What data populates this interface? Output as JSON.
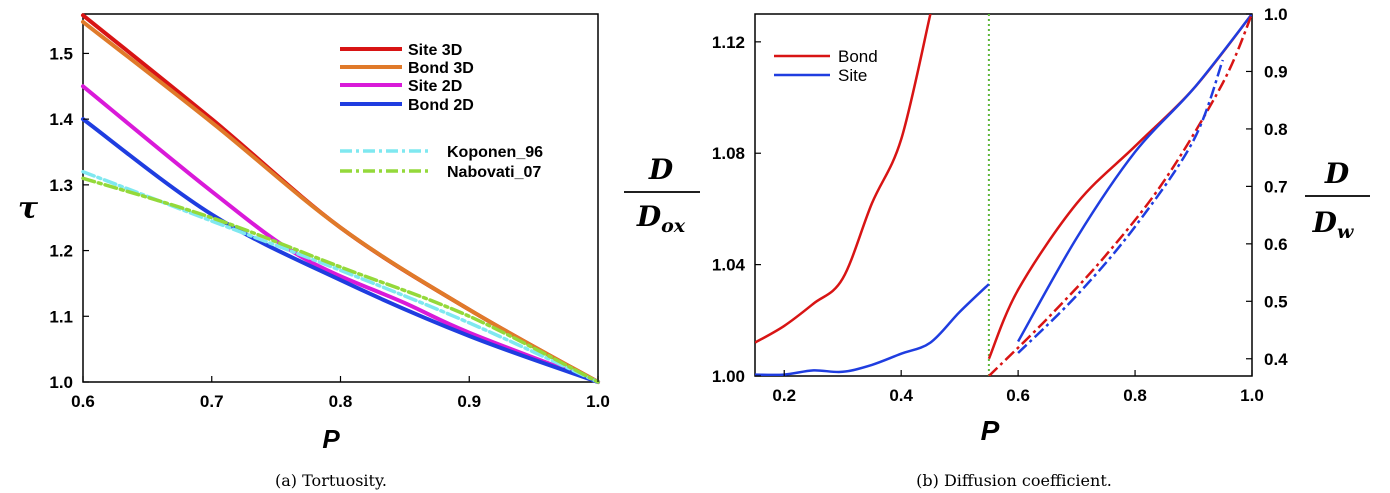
{
  "chart_data": [
    {
      "type": "line",
      "caption": "(a) Tortuosity.",
      "xlabel": "P",
      "ylabel": "τ",
      "xlim": [
        0.6,
        1.0
      ],
      "ylim": [
        1.0,
        1.56
      ],
      "xticks": [
        "0.6",
        "0.7",
        "0.8",
        "0.9",
        "1.0"
      ],
      "yticks": [
        "1.0",
        "1.1",
        "1.2",
        "1.3",
        "1.4",
        "1.5"
      ],
      "legend_position": "top-right",
      "series": [
        {
          "name": "Site 3D",
          "color": "#d81414",
          "style": "solid",
          "x": [
            0.6,
            0.7,
            0.8,
            0.9,
            1.0
          ],
          "y": [
            1.558,
            1.4,
            1.235,
            1.11,
            1.0
          ]
        },
        {
          "name": "Bond 3D",
          "color": "#e07a2a",
          "style": "solid",
          "x": [
            0.6,
            0.7,
            0.8,
            0.9,
            1.0
          ],
          "y": [
            1.548,
            1.395,
            1.235,
            1.11,
            1.0
          ]
        },
        {
          "name": "Site 2D",
          "color": "#d91ad9",
          "style": "solid",
          "x": [
            0.6,
            0.7,
            0.77,
            0.85,
            0.9,
            1.0
          ],
          "y": [
            1.45,
            1.29,
            1.19,
            1.12,
            1.075,
            1.0
          ]
        },
        {
          "name": "Bond 2D",
          "color": "#1f3de0",
          "style": "solid",
          "x": [
            0.6,
            0.7,
            0.8,
            0.9,
            1.0
          ],
          "y": [
            1.4,
            1.255,
            1.155,
            1.07,
            1.0
          ]
        },
        {
          "name": "Koponen_96",
          "color": "#7fe8f0",
          "style": "dashdot",
          "x": [
            0.6,
            0.7,
            0.8,
            0.9,
            1.0
          ],
          "y": [
            1.32,
            1.245,
            1.17,
            1.09,
            1.0
          ]
        },
        {
          "name": "Nabovati_07",
          "color": "#94d93a",
          "style": "dashdot",
          "x": [
            0.6,
            0.7,
            0.8,
            0.9,
            1.0
          ],
          "y": [
            1.31,
            1.25,
            1.175,
            1.1,
            1.0
          ]
        }
      ]
    },
    {
      "type": "line",
      "caption": "(b) Diffusion coefficient.",
      "xlabel": "P",
      "ylabel_left": "D / D_ox",
      "ylabel_right": "D / D_w",
      "xlim": [
        0.15,
        1.0
      ],
      "ylim_left": [
        1.0,
        1.13
      ],
      "ylim_right": [
        0.37,
        1.0
      ],
      "xticks": [
        "0.2",
        "0.4",
        "0.6",
        "0.8",
        "1.0"
      ],
      "yticks_left": [
        "1.00",
        "1.04",
        "1.08",
        "1.12"
      ],
      "yticks_right": [
        "0.4",
        "0.5",
        "0.6",
        "0.7",
        "0.8",
        "0.9",
        "1.0"
      ],
      "threshold_line_x": 0.55,
      "legend_position": "top-left",
      "series": [
        {
          "name": "Bond",
          "color": "#d81414",
          "style": "solid",
          "axis": "left",
          "x": [
            0.15,
            0.2,
            0.25,
            0.3,
            0.35,
            0.4,
            0.45
          ],
          "y": [
            1.012,
            1.018,
            1.026,
            1.035,
            1.062,
            1.085,
            1.13
          ]
        },
        {
          "name": "Site",
          "color": "#1f3de0",
          "style": "solid",
          "axis": "left",
          "x": [
            0.15,
            0.2,
            0.25,
            0.3,
            0.35,
            0.4,
            0.45,
            0.5,
            0.55
          ],
          "y": [
            1.0005,
            1.0005,
            1.002,
            1.0015,
            1.004,
            1.008,
            1.012,
            1.023,
            1.033
          ]
        },
        {
          "name": "Bond",
          "color": "#d81414",
          "style": "solid",
          "axis": "right",
          "x": [
            0.55,
            0.6,
            0.7,
            0.8,
            0.9,
            1.0
          ],
          "y": [
            0.4,
            0.52,
            0.67,
            0.77,
            0.87,
            1.0
          ]
        },
        {
          "name": "Site",
          "color": "#1f3de0",
          "style": "solid",
          "axis": "right",
          "x": [
            0.6,
            0.7,
            0.8,
            0.9,
            1.0
          ],
          "y": [
            0.43,
            0.61,
            0.76,
            0.87,
            1.0
          ]
        },
        {
          "color": "#d81414",
          "style": "dashdot",
          "axis": "right",
          "x": [
            0.55,
            0.65,
            0.75,
            0.85,
            0.95,
            1.0
          ],
          "y": [
            0.37,
            0.47,
            0.58,
            0.71,
            0.88,
            1.0
          ]
        },
        {
          "color": "#1f3de0",
          "style": "dashdot",
          "axis": "right",
          "x": [
            0.6,
            0.7,
            0.8,
            0.9,
            0.95
          ],
          "y": [
            0.41,
            0.51,
            0.63,
            0.78,
            0.92
          ]
        }
      ]
    }
  ]
}
